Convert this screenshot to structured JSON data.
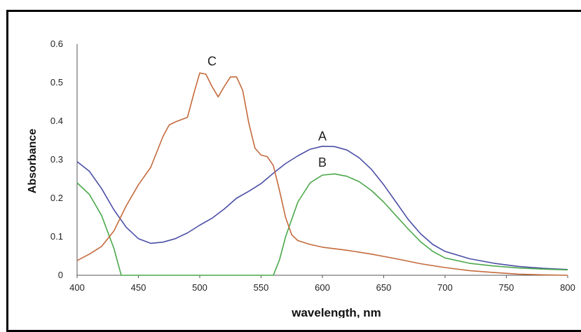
{
  "chart_data": {
    "type": "line",
    "title": "",
    "xlabel": "wavelength, nm",
    "ylabel": "Absorbance",
    "xlim": [
      400,
      800
    ],
    "ylim": [
      0,
      0.6
    ],
    "x_ticks": [
      "400",
      "450",
      "500",
      "550",
      "600",
      "650",
      "700",
      "750",
      "800"
    ],
    "y_ticks": [
      "0",
      "0.1",
      "0.2",
      "0.3",
      "0.4",
      "0.5",
      "0.6"
    ],
    "grid": false,
    "series": [
      {
        "name": "A",
        "color": "#4b4fa6",
        "points": [
          [
            400,
            0.295
          ],
          [
            410,
            0.27
          ],
          [
            420,
            0.225
          ],
          [
            430,
            0.17
          ],
          [
            440,
            0.125
          ],
          [
            450,
            0.095
          ],
          [
            460,
            0.083
          ],
          [
            470,
            0.086
          ],
          [
            480,
            0.095
          ],
          [
            490,
            0.11
          ],
          [
            500,
            0.13
          ],
          [
            510,
            0.148
          ],
          [
            520,
            0.172
          ],
          [
            530,
            0.2
          ],
          [
            540,
            0.218
          ],
          [
            550,
            0.238
          ],
          [
            560,
            0.265
          ],
          [
            570,
            0.29
          ],
          [
            580,
            0.31
          ],
          [
            590,
            0.327
          ],
          [
            600,
            0.335
          ],
          [
            610,
            0.334
          ],
          [
            620,
            0.325
          ],
          [
            630,
            0.305
          ],
          [
            640,
            0.275
          ],
          [
            650,
            0.235
          ],
          [
            660,
            0.19
          ],
          [
            670,
            0.145
          ],
          [
            680,
            0.108
          ],
          [
            690,
            0.08
          ],
          [
            700,
            0.062
          ],
          [
            720,
            0.043
          ],
          [
            740,
            0.031
          ],
          [
            760,
            0.023
          ],
          [
            780,
            0.018
          ],
          [
            800,
            0.015
          ]
        ]
      },
      {
        "name": "B",
        "color": "#4aa84a",
        "points": [
          [
            400,
            0.24
          ],
          [
            410,
            0.21
          ],
          [
            420,
            0.155
          ],
          [
            430,
            0.07
          ],
          [
            436,
            0.0
          ],
          [
            560,
            0.0
          ],
          [
            565,
            0.04
          ],
          [
            570,
            0.1
          ],
          [
            580,
            0.19
          ],
          [
            590,
            0.24
          ],
          [
            600,
            0.26
          ],
          [
            610,
            0.263
          ],
          [
            620,
            0.257
          ],
          [
            630,
            0.243
          ],
          [
            640,
            0.22
          ],
          [
            650,
            0.19
          ],
          [
            660,
            0.155
          ],
          [
            670,
            0.12
          ],
          [
            680,
            0.087
          ],
          [
            690,
            0.062
          ],
          [
            700,
            0.045
          ],
          [
            720,
            0.031
          ],
          [
            740,
            0.024
          ],
          [
            760,
            0.019
          ],
          [
            780,
            0.016
          ],
          [
            800,
            0.014
          ]
        ]
      },
      {
        "name": "C",
        "color": "#c46a3c",
        "points": [
          [
            400,
            0.038
          ],
          [
            410,
            0.055
          ],
          [
            420,
            0.075
          ],
          [
            430,
            0.115
          ],
          [
            440,
            0.18
          ],
          [
            450,
            0.235
          ],
          [
            460,
            0.28
          ],
          [
            470,
            0.36
          ],
          [
            475,
            0.39
          ],
          [
            480,
            0.398
          ],
          [
            490,
            0.41
          ],
          [
            495,
            0.47
          ],
          [
            500,
            0.525
          ],
          [
            505,
            0.522
          ],
          [
            510,
            0.49
          ],
          [
            515,
            0.463
          ],
          [
            520,
            0.49
          ],
          [
            525,
            0.515
          ],
          [
            530,
            0.515
          ],
          [
            535,
            0.48
          ],
          [
            540,
            0.395
          ],
          [
            545,
            0.33
          ],
          [
            550,
            0.312
          ],
          [
            555,
            0.308
          ],
          [
            560,
            0.285
          ],
          [
            565,
            0.22
          ],
          [
            570,
            0.15
          ],
          [
            575,
            0.105
          ],
          [
            580,
            0.09
          ],
          [
            590,
            0.08
          ],
          [
            600,
            0.073
          ],
          [
            620,
            0.065
          ],
          [
            640,
            0.055
          ],
          [
            660,
            0.043
          ],
          [
            680,
            0.03
          ],
          [
            700,
            0.02
          ],
          [
            720,
            0.012
          ],
          [
            740,
            0.007
          ],
          [
            760,
            0.003
          ],
          [
            780,
            0.001
          ],
          [
            800,
            0.0
          ]
        ]
      }
    ],
    "annotations": [
      {
        "text": "A",
        "x": 600,
        "y": 0.35,
        "series": "A"
      },
      {
        "text": "B",
        "x": 600,
        "y": 0.282,
        "series": "B"
      },
      {
        "text": "C",
        "x": 510,
        "y": 0.545,
        "series": "C"
      }
    ]
  }
}
